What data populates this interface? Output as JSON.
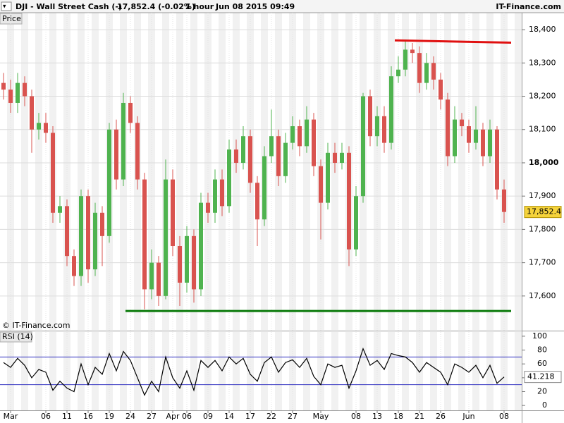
{
  "header": {
    "symbol": "DJI - Wall Street Cash (-)",
    "quote": "17,852.4 (-0.02%)",
    "interval": "1 hour",
    "datetime": "Jun 08 2015 09:49",
    "brand": "IT-Finance.com"
  },
  "chart_data": [
    {
      "type": "candlestick",
      "panel_label": "Price",
      "watermark": "© IT-Finance.com",
      "up_color": "#4fb34f",
      "down_color": "#d9534f",
      "open": [
        18240,
        18220,
        18180,
        18240,
        18200,
        18100,
        18120,
        18090,
        17850,
        17870,
        17720,
        17660,
        17900,
        17680,
        17850,
        17780,
        18100,
        17950,
        18180,
        18120,
        17950,
        17620,
        17700,
        17600,
        17950,
        17750,
        17640,
        17780,
        17620,
        17880,
        17850,
        17950,
        17870,
        18040,
        18000,
        18080,
        17940,
        17830,
        18020,
        18080,
        17960,
        18060,
        18110,
        18050,
        18130,
        17990,
        17880,
        18030,
        18000,
        18030,
        17740,
        17900,
        18200,
        18080,
        18140,
        18060,
        18260,
        18280,
        18340,
        18330,
        18240,
        18300,
        18250,
        18190,
        18020,
        18130,
        18110,
        18060,
        18100,
        18020,
        18100,
        17920
      ],
      "high": [
        18270,
        18250,
        18270,
        18260,
        18220,
        18150,
        18150,
        18110,
        17900,
        17890,
        17740,
        17920,
        17920,
        17880,
        17870,
        18120,
        18130,
        18210,
        18200,
        18140,
        17970,
        17740,
        17720,
        18010,
        17980,
        17780,
        17810,
        17800,
        17910,
        17910,
        17980,
        17980,
        18070,
        18070,
        18110,
        18100,
        17960,
        18050,
        18160,
        18100,
        18090,
        18140,
        18130,
        18170,
        18150,
        18010,
        18060,
        18060,
        18060,
        18050,
        17930,
        18210,
        18220,
        18170,
        18170,
        18290,
        18320,
        18370,
        18360,
        18350,
        18330,
        18320,
        18270,
        18210,
        18170,
        18150,
        18130,
        18170,
        18120,
        18130,
        18110,
        17950
      ],
      "low": [
        18190,
        18150,
        18150,
        18170,
        18030,
        18070,
        18060,
        17820,
        17820,
        17690,
        17630,
        17630,
        17640,
        17660,
        17690,
        17760,
        17920,
        17930,
        18090,
        17920,
        17560,
        17590,
        17570,
        17590,
        17720,
        17570,
        17610,
        17580,
        17600,
        17820,
        17820,
        17840,
        17850,
        17970,
        17980,
        17910,
        17750,
        17810,
        18000,
        17930,
        17940,
        18040,
        18020,
        18030,
        17960,
        17770,
        17860,
        17970,
        17980,
        17690,
        17720,
        17880,
        18050,
        18050,
        18030,
        18040,
        18240,
        18260,
        18300,
        18210,
        18220,
        18220,
        18160,
        17990,
        18000,
        18080,
        18030,
        18040,
        17990,
        18000,
        17890,
        17820
      ],
      "close": [
        18220,
        18180,
        18240,
        18200,
        18100,
        18120,
        18090,
        17850,
        17870,
        17720,
        17660,
        17900,
        17680,
        17850,
        17780,
        18100,
        17950,
        18180,
        18120,
        17950,
        17620,
        17700,
        17600,
        17950,
        17750,
        17640,
        17780,
        17620,
        17880,
        17850,
        17950,
        17870,
        18040,
        18000,
        18080,
        17940,
        17830,
        18020,
        18080,
        17960,
        18060,
        18110,
        18050,
        18130,
        17990,
        17880,
        18030,
        18000,
        18030,
        17740,
        17900,
        18200,
        18080,
        18140,
        18060,
        18260,
        18280,
        18340,
        18330,
        18240,
        18300,
        18250,
        18190,
        18020,
        18130,
        18110,
        18060,
        18100,
        18020,
        18100,
        17920,
        17852.4
      ],
      "last_label": "17,852.4",
      "lines": [
        {
          "color": "#e01010",
          "x": [
            55.5,
            72
          ],
          "values": [
            18368,
            18361
          ]
        },
        {
          "color": "#0a7a0a",
          "x": [
            17.3,
            72
          ],
          "values": [
            17555,
            17555
          ]
        }
      ],
      "xlim": [
        -0.5,
        73.5
      ],
      "ylim": [
        17498,
        18451
      ],
      "yticks": [
        {
          "value": 17600,
          "label": "17,600"
        },
        {
          "value": 17700,
          "label": "17,700"
        },
        {
          "value": 17800,
          "label": "17,800"
        },
        {
          "value": 17900,
          "label": "17,900"
        },
        {
          "value": 18000,
          "label": "18,000"
        },
        {
          "value": 18100,
          "label": "18,100"
        },
        {
          "value": 18200,
          "label": "18,200"
        },
        {
          "value": 18300,
          "label": "18,300"
        },
        {
          "value": 18400,
          "label": "18,400"
        }
      ],
      "xticks": [
        {
          "value": 1,
          "label": "Mar"
        },
        {
          "value": 6,
          "label": "06"
        },
        {
          "value": 9,
          "label": "11"
        },
        {
          "value": 12,
          "label": "16"
        },
        {
          "value": 15,
          "label": "19"
        },
        {
          "value": 18,
          "label": "24"
        },
        {
          "value": 21,
          "label": "27"
        },
        {
          "value": 24,
          "label": "Apr"
        },
        {
          "value": 26,
          "label": "06"
        },
        {
          "value": 29,
          "label": "09"
        },
        {
          "value": 32,
          "label": "14"
        },
        {
          "value": 35,
          "label": "17"
        },
        {
          "value": 38,
          "label": "22"
        },
        {
          "value": 41,
          "label": "27"
        },
        {
          "value": 45,
          "label": "May"
        },
        {
          "value": 50,
          "label": "08"
        },
        {
          "value": 53,
          "label": "13"
        },
        {
          "value": 56,
          "label": "18"
        },
        {
          "value": 59,
          "label": "21"
        },
        {
          "value": 62,
          "label": "26"
        },
        {
          "value": 66,
          "label": "Jun"
        },
        {
          "value": 71,
          "label": "08"
        }
      ],
      "grid": true
    },
    {
      "type": "line",
      "panel_label": "RSI (14)",
      "color": "#000000",
      "level_color": "#3030c0",
      "values": [
        62,
        55,
        68,
        58,
        40,
        52,
        48,
        22,
        35,
        25,
        20,
        60,
        30,
        55,
        45,
        75,
        50,
        78,
        65,
        40,
        15,
        35,
        20,
        70,
        40,
        25,
        50,
        22,
        65,
        55,
        65,
        50,
        70,
        60,
        68,
        45,
        35,
        62,
        70,
        48,
        62,
        66,
        55,
        68,
        42,
        30,
        60,
        55,
        58,
        25,
        50,
        82,
        58,
        65,
        52,
        75,
        72,
        70,
        62,
        48,
        62,
        55,
        48,
        30,
        60,
        55,
        48,
        58,
        40,
        58,
        32,
        41.218
      ],
      "levels": [
        30,
        70
      ],
      "xlim": [
        -0.5,
        73.5
      ],
      "ylim": [
        -7,
        106
      ],
      "yticks": [
        0,
        20,
        40,
        60,
        80,
        100
      ]
    }
  ]
}
